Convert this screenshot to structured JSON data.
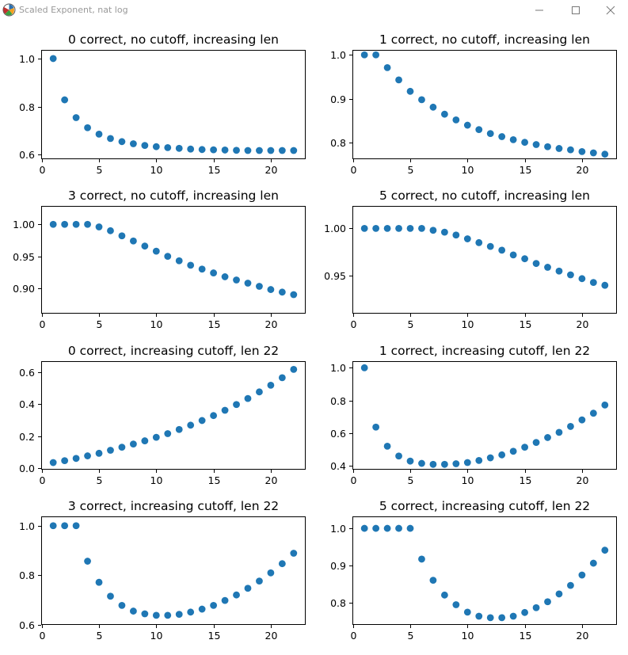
{
  "window": {
    "title": "Scaled Exponent, nat log",
    "icon": "matplotlib-icon",
    "controls": [
      "minimize-icon",
      "maximize-icon",
      "close-icon"
    ]
  },
  "colors": {
    "marker": "#1f77b4"
  },
  "chart_data": [
    {
      "type": "scatter",
      "title": "0 correct, no cutoff, increasing len",
      "x": [
        1,
        2,
        3,
        4,
        5,
        6,
        7,
        8,
        9,
        10,
        11,
        12,
        13,
        14,
        15,
        16,
        17,
        18,
        19,
        20,
        21,
        22
      ],
      "y": [
        1.0,
        0.828,
        0.754,
        0.712,
        0.685,
        0.667,
        0.654,
        0.645,
        0.638,
        0.633,
        0.629,
        0.626,
        0.623,
        0.621,
        0.62,
        0.619,
        0.618,
        0.617,
        0.617,
        0.617,
        0.617,
        0.617
      ],
      "xlim": [
        -0.05,
        23.05
      ],
      "ylim": [
        0.5808,
        1.036
      ],
      "xticks": [
        0,
        5,
        10,
        15,
        20
      ],
      "xtick_labels": [
        "0",
        "5",
        "10",
        "15",
        "20"
      ],
      "yticks": [
        0.6,
        0.8,
        1.0
      ],
      "ytick_labels": [
        "0.6",
        "0.8",
        "1.0"
      ],
      "xlabel": "",
      "ylabel": "",
      "grid": false
    },
    {
      "type": "scatter",
      "title": "1 correct, no cutoff, increasing len",
      "x": [
        1,
        2,
        3,
        4,
        5,
        6,
        7,
        8,
        9,
        10,
        11,
        12,
        13,
        14,
        15,
        16,
        17,
        18,
        19,
        20,
        21,
        22
      ],
      "y": [
        1.0,
        1.0,
        0.971,
        0.943,
        0.917,
        0.898,
        0.881,
        0.865,
        0.852,
        0.84,
        0.83,
        0.821,
        0.814,
        0.807,
        0.801,
        0.796,
        0.791,
        0.787,
        0.784,
        0.78,
        0.777,
        0.774
      ],
      "xlim": [
        -0.05,
        23.05
      ],
      "ylim": [
        0.7626,
        1.0113
      ],
      "xticks": [
        0,
        5,
        10,
        15,
        20
      ],
      "xtick_labels": [
        "0",
        "5",
        "10",
        "15",
        "20"
      ],
      "yticks": [
        0.8,
        0.9,
        1.0
      ],
      "ytick_labels": [
        "0.8",
        "0.9",
        "1.0"
      ],
      "xlabel": "",
      "ylabel": "",
      "grid": false
    },
    {
      "type": "scatter",
      "title": "3 correct, no cutoff, increasing len",
      "x": [
        1,
        2,
        3,
        4,
        5,
        6,
        7,
        8,
        9,
        10,
        11,
        12,
        13,
        14,
        15,
        16,
        17,
        18,
        19,
        20,
        21,
        22
      ],
      "y": [
        1.0,
        1.0,
        1.0,
        1.0,
        0.996,
        0.99,
        0.982,
        0.974,
        0.966,
        0.958,
        0.95,
        0.943,
        0.936,
        0.93,
        0.924,
        0.918,
        0.913,
        0.908,
        0.903,
        0.898,
        0.894,
        0.89
      ],
      "xlim": [
        -0.05,
        23.05
      ],
      "ylim": [
        0.8603,
        1.0288
      ],
      "xticks": [
        0,
        5,
        10,
        15,
        20
      ],
      "xtick_labels": [
        "0",
        "5",
        "10",
        "15",
        "20"
      ],
      "yticks": [
        0.9,
        0.95,
        1.0
      ],
      "ytick_labels": [
        "0.90",
        "0.95",
        "1.00"
      ],
      "xlabel": "",
      "ylabel": "",
      "grid": false
    },
    {
      "type": "scatter",
      "title": "5 correct, no cutoff, increasing len",
      "x": [
        1,
        2,
        3,
        4,
        5,
        6,
        7,
        8,
        9,
        10,
        11,
        12,
        13,
        14,
        15,
        16,
        17,
        18,
        19,
        20,
        21,
        22
      ],
      "y": [
        1.0,
        1.0,
        1.0,
        1.0,
        1.0,
        1.0,
        0.998,
        0.996,
        0.993,
        0.989,
        0.985,
        0.981,
        0.977,
        0.972,
        0.968,
        0.963,
        0.959,
        0.955,
        0.951,
        0.947,
        0.943,
        0.94
      ],
      "xlim": [
        -0.05,
        23.05
      ],
      "ylim": [
        0.9101,
        1.0237
      ],
      "xticks": [
        0,
        5,
        10,
        15,
        20
      ],
      "xtick_labels": [
        "0",
        "5",
        "10",
        "15",
        "20"
      ],
      "yticks": [
        0.95,
        1.0
      ],
      "ytick_labels": [
        "0.95",
        "1.00"
      ],
      "xlabel": "",
      "ylabel": "",
      "grid": false
    },
    {
      "type": "scatter",
      "title": "0 correct, increasing cutoff, len 22",
      "x": [
        1,
        2,
        3,
        4,
        5,
        6,
        7,
        8,
        9,
        10,
        11,
        12,
        13,
        14,
        15,
        16,
        17,
        18,
        19,
        20,
        21,
        22
      ],
      "y": [
        0.034,
        0.046,
        0.06,
        0.076,
        0.092,
        0.111,
        0.13,
        0.15,
        0.17,
        0.192,
        0.215,
        0.241,
        0.268,
        0.297,
        0.328,
        0.361,
        0.397,
        0.435,
        0.476,
        0.518,
        0.565,
        0.617
      ],
      "xlim": [
        -0.05,
        23.05
      ],
      "ylim": [
        -0.0104,
        0.6683
      ],
      "xticks": [
        0,
        5,
        10,
        15,
        20
      ],
      "xtick_labels": [
        "0",
        "5",
        "10",
        "15",
        "20"
      ],
      "yticks": [
        0.0,
        0.2,
        0.4,
        0.6
      ],
      "ytick_labels": [
        "0.0",
        "0.2",
        "0.4",
        "0.6"
      ],
      "xlabel": "",
      "ylabel": "",
      "grid": false
    },
    {
      "type": "scatter",
      "title": "1 correct, increasing cutoff, len 22",
      "x": [
        1,
        2,
        3,
        4,
        5,
        6,
        7,
        8,
        9,
        10,
        11,
        12,
        13,
        14,
        15,
        16,
        17,
        18,
        19,
        20,
        21,
        22
      ],
      "y": [
        1.0,
        0.637,
        0.52,
        0.46,
        0.429,
        0.415,
        0.409,
        0.409,
        0.413,
        0.42,
        0.433,
        0.449,
        0.467,
        0.489,
        0.514,
        0.543,
        0.573,
        0.605,
        0.641,
        0.681,
        0.722,
        0.772
      ],
      "xlim": [
        -0.05,
        23.05
      ],
      "ylim": [
        0.3765,
        1.0404
      ],
      "xticks": [
        0,
        5,
        10,
        15,
        20
      ],
      "xtick_labels": [
        "0",
        "5",
        "10",
        "15",
        "20"
      ],
      "yticks": [
        0.4,
        0.6,
        0.8,
        1.0
      ],
      "ytick_labels": [
        "0.4",
        "0.6",
        "0.8",
        "1.0"
      ],
      "xlabel": "",
      "ylabel": "",
      "grid": false
    },
    {
      "type": "scatter",
      "title": "3 correct, increasing cutoff, len 22",
      "x": [
        1,
        2,
        3,
        4,
        5,
        6,
        7,
        8,
        9,
        10,
        11,
        12,
        13,
        14,
        15,
        16,
        17,
        18,
        19,
        20,
        21,
        22
      ],
      "y": [
        1.0,
        1.0,
        1.0,
        0.857,
        0.772,
        0.716,
        0.679,
        0.656,
        0.645,
        0.639,
        0.639,
        0.643,
        0.652,
        0.664,
        0.679,
        0.699,
        0.721,
        0.748,
        0.777,
        0.81,
        0.847,
        0.889
      ],
      "xlim": [
        -0.05,
        23.05
      ],
      "ylim": [
        0.6004,
        1.0374
      ],
      "xticks": [
        0,
        5,
        10,
        15,
        20
      ],
      "xtick_labels": [
        "0",
        "5",
        "10",
        "15",
        "20"
      ],
      "yticks": [
        0.6,
        0.8,
        1.0
      ],
      "ytick_labels": [
        "0.6",
        "0.8",
        "1.0"
      ],
      "xlabel": "",
      "ylabel": "",
      "grid": false
    },
    {
      "type": "scatter",
      "title": "5 correct, increasing cutoff, len 22",
      "x": [
        1,
        2,
        3,
        4,
        5,
        6,
        7,
        8,
        9,
        10,
        11,
        12,
        13,
        14,
        15,
        16,
        17,
        18,
        19,
        20,
        21,
        22
      ],
      "y": [
        1.0,
        1.0,
        1.0,
        1.0,
        1.0,
        0.917,
        0.86,
        0.82,
        0.794,
        0.774,
        0.763,
        0.759,
        0.759,
        0.763,
        0.773,
        0.786,
        0.802,
        0.823,
        0.846,
        0.874,
        0.906,
        0.941
      ],
      "xlim": [
        -0.05,
        23.05
      ],
      "ylim": [
        0.7395,
        1.0322
      ],
      "xticks": [
        0,
        5,
        10,
        15,
        20
      ],
      "xtick_labels": [
        "0",
        "5",
        "10",
        "15",
        "20"
      ],
      "yticks": [
        0.8,
        0.9,
        1.0
      ],
      "ytick_labels": [
        "0.8",
        "0.9",
        "1.0"
      ],
      "xlabel": "",
      "ylabel": "",
      "grid": false
    }
  ]
}
